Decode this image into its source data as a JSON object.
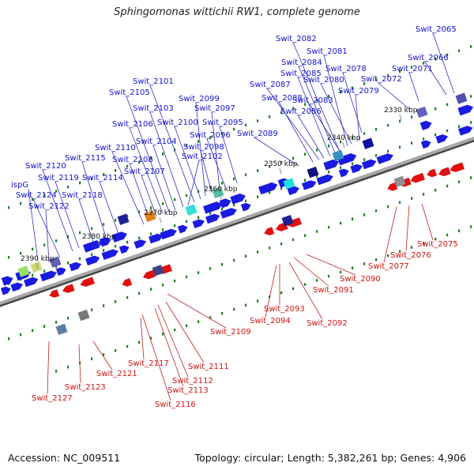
{
  "title": "Sphingomonas wittichii RW1, complete genome",
  "footer": {
    "accession": "Accession: NC_009511",
    "meta": "Topology: circular; Length: 5,382,261 bp; Genes: 4,906"
  },
  "colors": {
    "forward_label": "#1010d0",
    "reverse_label": "#d01010",
    "forward_gene": "#1a1ae0",
    "reverse_gene": "#e01010",
    "backbone": "#888888",
    "tick": "#208020"
  },
  "kbp_markers": [
    "2330 kbp",
    "2340 kbp",
    "2350 kbp",
    "2360 kbp",
    "2370 kbp",
    "2380 kbp",
    "2390 kbp"
  ],
  "forward_labels": [
    "Swit_2065",
    "Swit_2066",
    "Swit_2071",
    "Swit_2072",
    "Swit_2078",
    "Swit_2079",
    "Swit_2080",
    "Swit_2081",
    "Swit_2082",
    "Swit_2083",
    "Swit_2084",
    "Swit_2085",
    "Swit_2086",
    "Swit_2087",
    "Swit_2088",
    "Swit_2089",
    "Swit_2095",
    "Swit_2096",
    "Swit_2097",
    "Swit_2098",
    "Swit_2099",
    "Swit_2100",
    "Swit_2101",
    "Swit_2102",
    "Swit_2103",
    "Swit_2104",
    "Swit_2105",
    "Swit_2106",
    "Swit_2107",
    "Swit_2108",
    "Swit_2110",
    "Swit_2114",
    "Swit_2115",
    "Swit_2118",
    "Swit_2119",
    "Swit_2120",
    "ispG",
    "Swit_2122",
    "Swit_2124"
  ],
  "reverse_labels": [
    "Swit_2075",
    "Swit_2076",
    "Swit_2077",
    "Swit_2090",
    "Swit_2091",
    "Swit_2092",
    "Swit_2093",
    "Swit_2094",
    "Swit_2109",
    "Swit_2111",
    "Swit_2112",
    "Swit_2113",
    "Swit_2116",
    "Swit_2117",
    "Swit_2121",
    "Swit_2123",
    "Swit_2127"
  ]
}
